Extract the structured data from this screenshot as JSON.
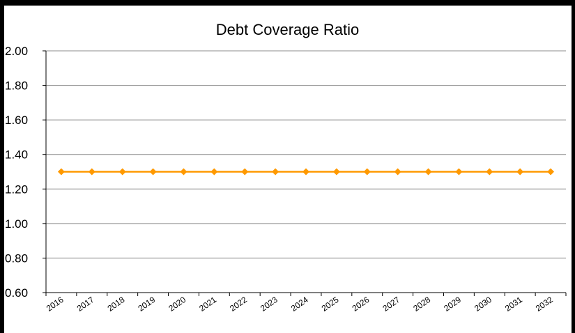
{
  "chart_data": {
    "type": "line",
    "title": "Debt Coverage Ratio",
    "xlabel": "",
    "ylabel": "",
    "categories": [
      "2016",
      "2017",
      "2018",
      "2019",
      "2020",
      "2021",
      "2022",
      "2023",
      "2024",
      "2025",
      "2026",
      "2027",
      "2028",
      "2029",
      "2030",
      "2031",
      "2032"
    ],
    "series": [
      {
        "values": [
          1.3,
          1.3,
          1.3,
          1.3,
          1.3,
          1.3,
          1.3,
          1.3,
          1.3,
          1.3,
          1.3,
          1.3,
          1.3,
          1.3,
          1.3,
          1.3,
          1.3
        ],
        "color": "#FF9900",
        "marker": "diamond"
      }
    ],
    "yticks": [
      "0.60",
      "0.80",
      "1.00",
      "1.20",
      "1.40",
      "1.60",
      "1.80",
      "2.00"
    ],
    "ylim": [
      0.6,
      2.0
    ],
    "grid": "horizontal",
    "legend": "none"
  }
}
